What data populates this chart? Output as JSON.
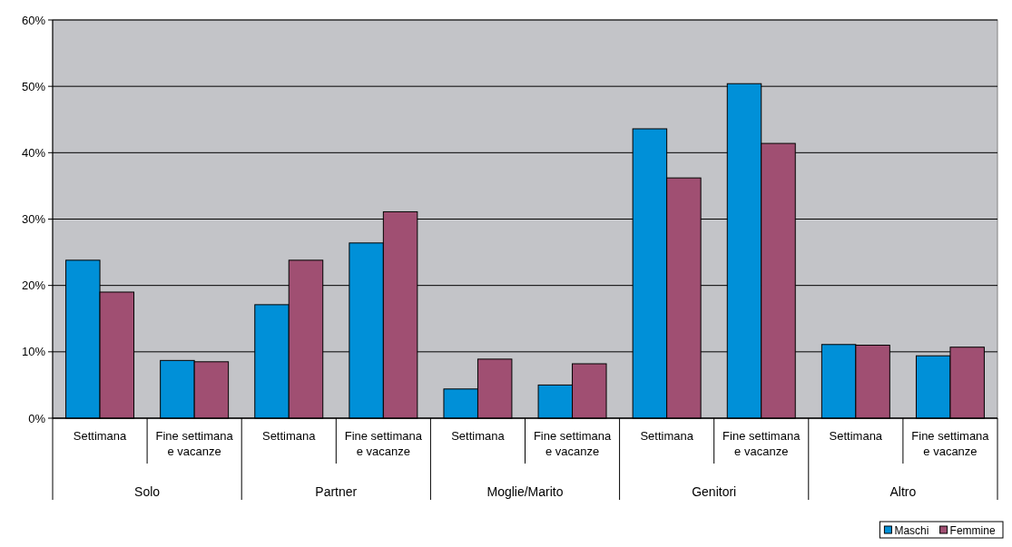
{
  "chart_data": {
    "type": "bar",
    "categories": [
      "Settimana",
      "Fine settimana e vacanze",
      "Settimana",
      "Fine settimana e vacanze",
      "Settimana",
      "Fine settimana e vacanze",
      "Settimana",
      "Fine settimana e vacanze",
      "Settimana",
      "Fine settimana e vacanze"
    ],
    "series": [
      {
        "name": "Maschi",
        "color": "#0090d8",
        "values": [
          23.8,
          8.7,
          17.1,
          26.4,
          4.4,
          5.0,
          43.6,
          50.4,
          11.1,
          9.4
        ]
      },
      {
        "name": "Femmine",
        "color": "#a04f72",
        "values": [
          19.0,
          8.5,
          23.8,
          31.1,
          8.9,
          8.2,
          36.2,
          41.4,
          11.0,
          10.7
        ]
      }
    ],
    "annotations": [
      "Solo",
      "Partner",
      "Moglie/Marito",
      "Genitori",
      "Altro"
    ],
    "ylim": [
      0,
      60
    ],
    "yticks": [
      {
        "value": 0,
        "label": "0%"
      },
      {
        "value": 10,
        "label": "10%"
      },
      {
        "value": 20,
        "label": "20%"
      },
      {
        "value": 30,
        "label": "30%"
      },
      {
        "value": 40,
        "label": "40%"
      },
      {
        "value": 50,
        "label": "50%"
      },
      {
        "value": 60,
        "label": "60%"
      }
    ],
    "grid": "y",
    "legend": "bottom right"
  }
}
